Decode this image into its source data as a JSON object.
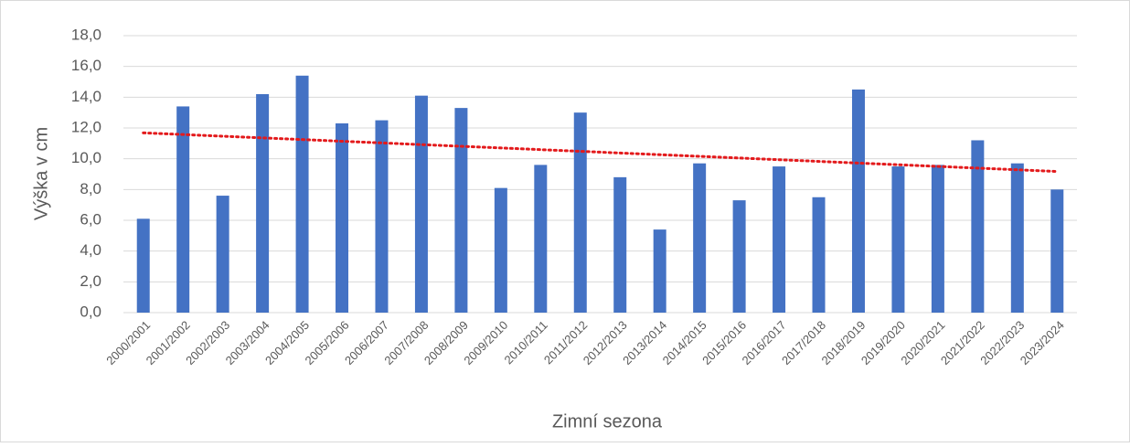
{
  "chart_data": {
    "type": "bar",
    "x_label": "Zimní sezona",
    "y_label": "Výška v cm",
    "categories": [
      "2000/2001",
      "2001/2002",
      "2002/2003",
      "2003/2004",
      "2004/2005",
      "2005/2006",
      "2006/2007",
      "2007/2008",
      "2008/2009",
      "2009/2010",
      "2010/2011",
      "2011/2012",
      "2012/2013",
      "2013/2014",
      "2014/2015",
      "2015/2016",
      "2016/2017",
      "2017/2018",
      "2018/2019",
      "2019/2020",
      "2020/2021",
      "2021/2022",
      "2022/2023",
      "2023/2024"
    ],
    "values": [
      6.1,
      13.4,
      7.6,
      14.2,
      15.4,
      12.3,
      12.5,
      14.1,
      13.3,
      8.1,
      9.6,
      13.0,
      8.8,
      5.4,
      9.7,
      7.3,
      9.5,
      7.5,
      14.5,
      9.5,
      9.6,
      11.2,
      9.7,
      8.0
    ],
    "color": "#4472c4",
    "ylim": [
      0,
      18
    ],
    "yticks": [
      {
        "value": 0,
        "label": "0,0"
      },
      {
        "value": 2,
        "label": "2,0"
      },
      {
        "value": 4,
        "label": "4,0"
      },
      {
        "value": 6,
        "label": "6,0"
      },
      {
        "value": 8,
        "label": "8,0"
      },
      {
        "value": 10,
        "label": "10,0"
      },
      {
        "value": 12,
        "label": "12,0"
      },
      {
        "value": 14,
        "label": "14,0"
      },
      {
        "value": 16,
        "label": "16,0"
      },
      {
        "value": 18,
        "label": "18,0"
      }
    ],
    "grid": true,
    "trendline": {
      "type": "linear",
      "color": "#e31a1c"
    }
  }
}
